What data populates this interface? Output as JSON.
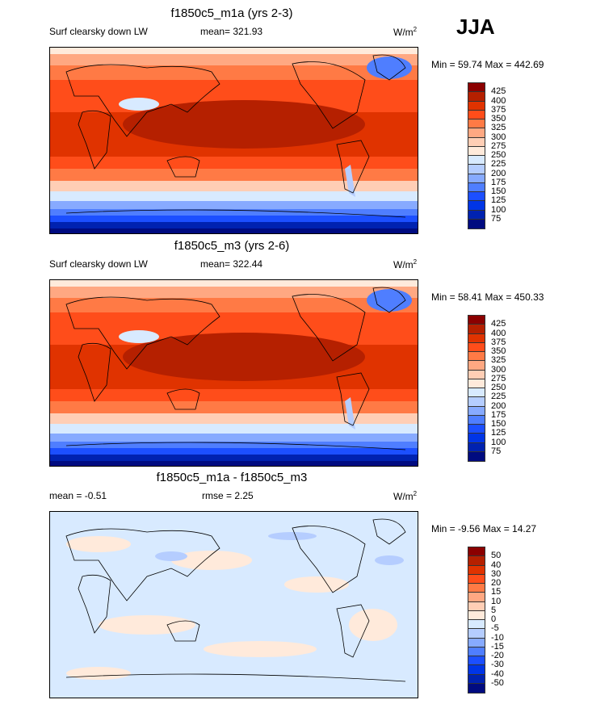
{
  "season": "JJA",
  "colors": {
    "main": [
      "#8b0000",
      "#b52000",
      "#e03300",
      "#ff4d1a",
      "#ff7a45",
      "#ffa882",
      "#ffceb5",
      "#ffeadb",
      "#d8eaff",
      "#b5cdff",
      "#87aaff",
      "#4f7eff",
      "#1c4fff",
      "#0035e6",
      "#0022b0",
      "#000b80"
    ]
  },
  "chart_data": [
    {
      "type": "heatmap",
      "title": "f1850c5_m1a (yrs 2-3)",
      "left_label": "Surf clearsky down LW",
      "mean_text": "mean= 321.93",
      "units": "W/m",
      "units_sup": "2",
      "minmax": "Min =  59.74 Max = 442.69",
      "levels": [
        "425",
        "400",
        "375",
        "350",
        "325",
        "300",
        "275",
        "250",
        "225",
        "200",
        "175",
        "150",
        "125",
        "100",
        "75"
      ]
    },
    {
      "type": "heatmap",
      "title": "f1850c5_m3 (yrs 2-6)",
      "left_label": "Surf clearsky down LW",
      "mean_text": "mean= 322.44",
      "units": "W/m",
      "units_sup": "2",
      "minmax": "Min =  58.41 Max = 450.33",
      "levels": [
        "425",
        "400",
        "375",
        "350",
        "325",
        "300",
        "275",
        "250",
        "225",
        "200",
        "175",
        "150",
        "125",
        "100",
        "75"
      ]
    },
    {
      "type": "heatmap",
      "title": "f1850c5_m1a - f1850c5_m3",
      "left_label": "mean =  -0.51",
      "mean_text": "rmse =   2.25",
      "units": "W/m",
      "units_sup": "2",
      "minmax": "Min =  -9.56 Max =  14.27",
      "levels": [
        "50",
        "40",
        "30",
        "20",
        "15",
        "10",
        "5",
        "0",
        "-5",
        "-10",
        "-15",
        "-20",
        "-30",
        "-40",
        "-50"
      ]
    }
  ]
}
